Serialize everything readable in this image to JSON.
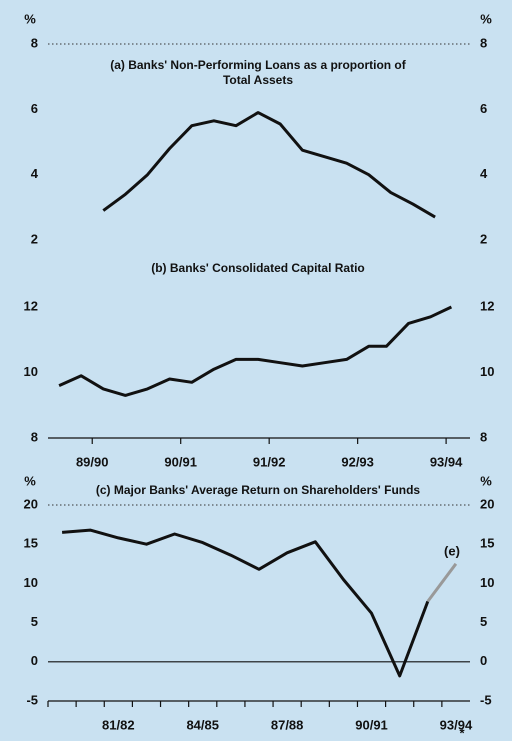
{
  "chart_data": [
    {
      "type": "line",
      "title": [
        "(a) Banks' Non-Performing Loans as a proportion of",
        "Total Assets"
      ],
      "unit_left": "%",
      "unit_right": "%",
      "x": [
        1990.125,
        1990.375,
        1990.625,
        1990.875,
        1991.125,
        1991.375,
        1991.625,
        1991.875,
        1992.125,
        1992.375,
        1992.625,
        1992.875,
        1993.125,
        1993.375,
        1993.625,
        1993.875
      ],
      "series": [
        {
          "color": "#111111",
          "values": [
            2.9,
            3.4,
            4.0,
            4.8,
            5.5,
            5.65,
            5.5,
            5.9,
            5.55,
            4.75,
            4.55,
            4.35,
            4.0,
            3.45,
            3.1,
            2.7
          ]
        }
      ],
      "xlim": [
        1989.5,
        1994.27
      ],
      "ylim": [
        2,
        8
      ],
      "yticks": [
        2,
        4,
        6,
        8
      ],
      "top_rule": "dotted"
    },
    {
      "type": "line",
      "title": [
        "(b) Banks' Consolidated Capital Ratio"
      ],
      "x": [
        1989.625,
        1989.875,
        1990.125,
        1990.375,
        1990.625,
        1990.875,
        1991.125,
        1991.375,
        1991.625,
        1991.875,
        1992.125,
        1992.375,
        1992.625,
        1992.875,
        1993.125,
        1993.325,
        1993.575,
        1993.825,
        1994.06
      ],
      "series": [
        {
          "color": "#111111",
          "values": [
            9.6,
            9.9,
            9.5,
            9.3,
            9.5,
            9.8,
            9.7,
            10.1,
            10.4,
            10.4,
            10.3,
            10.2,
            10.3,
            10.4,
            10.8,
            10.8,
            11.5,
            11.7,
            12.0
          ]
        }
      ],
      "xlim": [
        1989.5,
        1994.27
      ],
      "ylim": [
        8,
        12
      ],
      "yticks": [
        8,
        10,
        12
      ],
      "xticks": [
        {
          "value": 1990,
          "label": "89/90"
        },
        {
          "value": 1991,
          "label": "90/91"
        },
        {
          "value": 1992,
          "label": "91/92"
        },
        {
          "value": 1993,
          "label": "92/93"
        },
        {
          "value": 1994,
          "label": "93/94"
        }
      ]
    },
    {
      "type": "line",
      "title": [
        "(c) Major Banks' Average Return on Shareholders' Funds"
      ],
      "unit_left": "%",
      "unit_right": "%",
      "categories": [
        null,
        null,
        "81/82",
        null,
        null,
        "84/85",
        null,
        null,
        "87/88",
        null,
        null,
        "90/91",
        null,
        null,
        "93/94"
      ],
      "series": [
        {
          "color": "#111111",
          "values": [
            16.5,
            16.8,
            15.8,
            15.0,
            16.3,
            15.2,
            13.6,
            11.8,
            13.9,
            15.3,
            10.5,
            6.2,
            -1.8,
            7.7,
            null
          ]
        },
        {
          "color": "#999999",
          "values": [
            null,
            null,
            null,
            null,
            null,
            null,
            null,
            null,
            null,
            null,
            null,
            null,
            null,
            7.7,
            12.5
          ]
        }
      ],
      "ylim": [
        -5,
        20
      ],
      "yticks": [
        -5,
        0,
        5,
        10,
        15,
        20
      ],
      "top_rule": "dotted",
      "zero_line": true,
      "annotations": [
        "(e)",
        "*"
      ]
    }
  ]
}
